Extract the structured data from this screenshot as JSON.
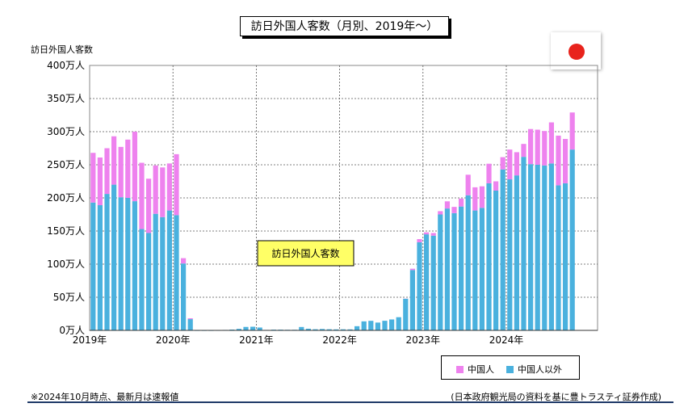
{
  "title": "訪日外国人客数（月別、2019年～）",
  "ylabel": "訪日外国人客数",
  "annotation": "訪日外国人客数",
  "footnote": "※2024年10月時点、最新月は速報値",
  "source": "(日本政府観光局の資料を基に豊トラスティ証券作成)",
  "flag": {
    "icon": "japan-flag-icon",
    "disc_color": "#e8231c"
  },
  "colors": {
    "china": "#ee82ee",
    "other": "#4ab1de"
  },
  "chart_data": {
    "type": "bar",
    "stacked": true,
    "unit": "万人",
    "ylim": [
      0,
      400
    ],
    "yticks": [
      "0万人",
      "50万人",
      "100万人",
      "150万人",
      "200万人",
      "250万人",
      "300万人",
      "350万人",
      "400万人"
    ],
    "xtick_labels": [
      "2019年",
      "2020年",
      "2021年",
      "2022年",
      "2023年",
      "2024年"
    ],
    "grid": true,
    "legend_position": "bottom-right",
    "legend": [
      "中国人",
      "中国人以外"
    ],
    "categories": [
      "2019-01",
      "2019-02",
      "2019-03",
      "2019-04",
      "2019-05",
      "2019-06",
      "2019-07",
      "2019-08",
      "2019-09",
      "2019-10",
      "2019-11",
      "2019-12",
      "2020-01",
      "2020-02",
      "2020-03",
      "2020-04",
      "2020-05",
      "2020-06",
      "2020-07",
      "2020-08",
      "2020-09",
      "2020-10",
      "2020-11",
      "2020-12",
      "2021-01",
      "2021-02",
      "2021-03",
      "2021-04",
      "2021-05",
      "2021-06",
      "2021-07",
      "2021-08",
      "2021-09",
      "2021-10",
      "2021-11",
      "2021-12",
      "2022-01",
      "2022-02",
      "2022-03",
      "2022-04",
      "2022-05",
      "2022-06",
      "2022-07",
      "2022-08",
      "2022-09",
      "2022-10",
      "2022-11",
      "2022-12",
      "2023-01",
      "2023-02",
      "2023-03",
      "2023-04",
      "2023-05",
      "2023-06",
      "2023-07",
      "2023-08",
      "2023-09",
      "2023-10",
      "2023-11",
      "2023-12",
      "2024-01",
      "2024-02",
      "2024-03",
      "2024-04",
      "2024-05",
      "2024-06",
      "2024-07",
      "2024-08",
      "2024-09",
      "2024-10"
    ],
    "series": [
      {
        "name": "中国人以外",
        "values": [
          193,
          189,
          206,
          220,
          201,
          200,
          195,
          153,
          147,
          176,
          171,
          181,
          174,
          101,
          17,
          0.2,
          0.2,
          0.2,
          0.3,
          0.7,
          1.2,
          2.3,
          5.2,
          5.5,
          4.3,
          0.7,
          1.1,
          1.1,
          0.9,
          0.9,
          5.1,
          2.5,
          1.7,
          2.1,
          1.7,
          1.5,
          1.6,
          1.5,
          6.3,
          13.6,
          14.4,
          11.8,
          14.5,
          16.5,
          19.9,
          47.8,
          91.1,
          133,
          145,
          143,
          175,
          184,
          177,
          187,
          204,
          181,
          185,
          222,
          211,
          243,
          228,
          234,
          262,
          251,
          250,
          249,
          252,
          219,
          222,
          273
        ]
      },
      {
        "name": "中国人",
        "values": [
          75,
          72,
          69,
          73,
          76,
          88,
          105,
          100,
          82,
          73,
          75,
          71,
          92,
          8,
          1.3,
          0,
          0,
          0,
          0,
          0,
          0,
          0,
          0,
          0,
          0,
          0,
          0,
          0,
          0,
          0,
          0,
          0,
          0,
          0,
          0,
          0,
          0,
          0,
          0,
          0,
          0,
          0,
          0,
          0,
          0,
          0.2,
          2,
          4.8,
          3,
          4,
          5,
          10.8,
          9.4,
          12,
          31,
          35,
          32.5,
          29.6,
          14,
          18.5,
          45,
          35,
          19.5,
          53,
          53,
          52,
          62,
          75,
          67,
          56
        ]
      }
    ]
  }
}
